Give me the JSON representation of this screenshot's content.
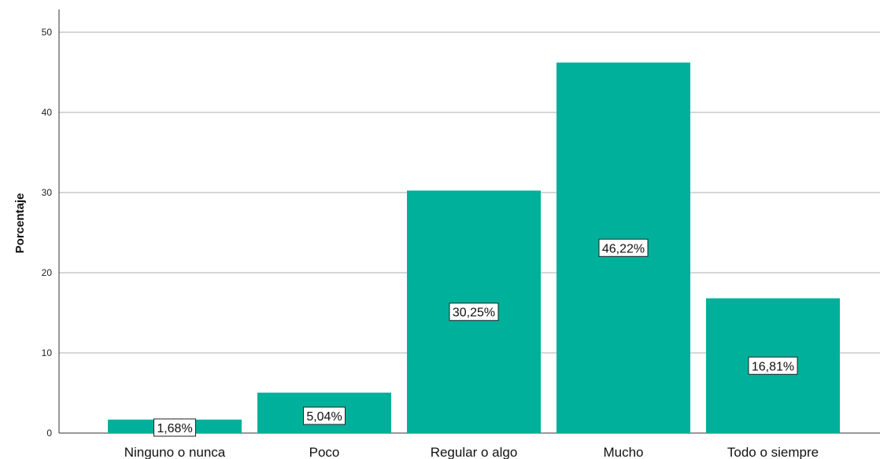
{
  "chart_data": {
    "type": "bar",
    "categories": [
      "Ninguno o nunca",
      "Poco",
      "Regular o algo",
      "Mucho",
      "Todo o siempre"
    ],
    "values": [
      1.68,
      5.04,
      30.25,
      46.22,
      16.81
    ],
    "data_labels": [
      "1,68%",
      "5,04%",
      "30,25%",
      "46,22%",
      "16,81%"
    ],
    "ylabel": "Porcentaje",
    "xlabel": "",
    "ylim": [
      0,
      52
    ],
    "yticks": [
      0,
      10,
      20,
      30,
      40,
      50
    ],
    "grid": true,
    "bar_color": "#00b09b"
  }
}
